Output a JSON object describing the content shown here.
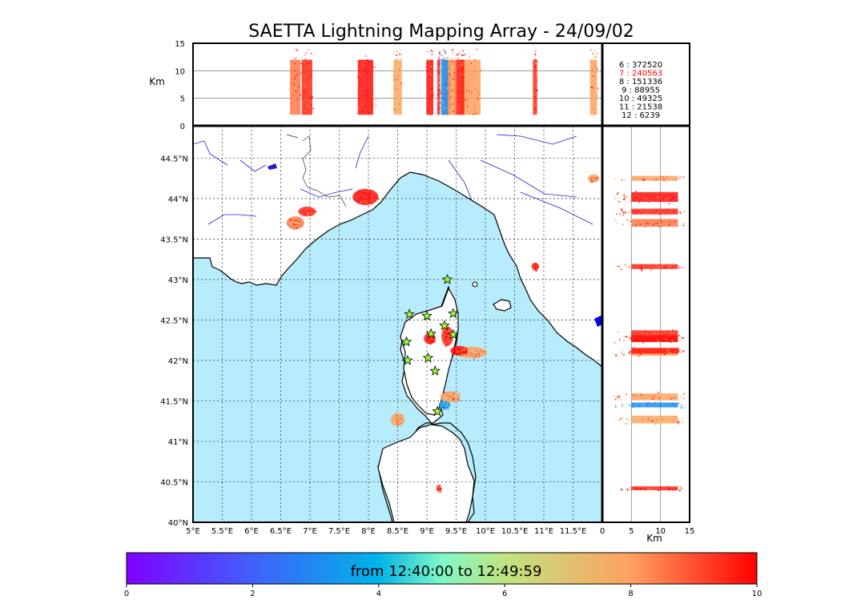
{
  "chart_data": {
    "type": "scatter",
    "title": "SAETTA Lightning Mapping Array - 24/09/02",
    "map": {
      "lon_range": [
        5,
        12
      ],
      "lat_range": [
        40,
        44.9
      ],
      "lon_ticks": [
        "5°E",
        "5.5°E",
        "6°E",
        "6.5°E",
        "7°E",
        "7.5°E",
        "8°E",
        "8.5°E",
        "9°E",
        "9.5°E",
        "10°E",
        "10.5°E",
        "11°E",
        "11.5°E"
      ],
      "lat_ticks": [
        "40°N",
        "40.5°N",
        "41°N",
        "41.5°N",
        "42°N",
        "42.5°N",
        "43°N",
        "43.5°N",
        "44°N",
        "44.5°N"
      ],
      "sea_color": "#b6ecfb",
      "stations": [
        {
          "lon": 9.35,
          "lat": 43.0
        },
        {
          "lon": 8.7,
          "lat": 42.57
        },
        {
          "lon": 9.0,
          "lat": 42.55
        },
        {
          "lon": 9.45,
          "lat": 42.58
        },
        {
          "lon": 9.3,
          "lat": 42.43
        },
        {
          "lon": 9.07,
          "lat": 42.33
        },
        {
          "lon": 8.65,
          "lat": 42.23
        },
        {
          "lon": 9.45,
          "lat": 42.32
        },
        {
          "lon": 8.67,
          "lat": 42.0
        },
        {
          "lon": 9.02,
          "lat": 42.03
        },
        {
          "lon": 9.14,
          "lat": 41.87
        },
        {
          "lon": 9.18,
          "lat": 41.37
        }
      ],
      "clusters": [
        {
          "lon": 6.75,
          "lat": 43.7,
          "rx": 0.15,
          "ry": 0.08,
          "t": 8.5
        },
        {
          "lon": 6.95,
          "lat": 43.84,
          "rx": 0.15,
          "ry": 0.06,
          "t": 9.5
        },
        {
          "lon": 7.95,
          "lat": 44.02,
          "rx": 0.22,
          "ry": 0.1,
          "t": 9.8
        },
        {
          "lon": 9.35,
          "lat": 42.3,
          "rx": 0.1,
          "ry": 0.12,
          "t": 9.5
        },
        {
          "lon": 9.05,
          "lat": 42.27,
          "rx": 0.1,
          "ry": 0.07,
          "t": 9.8
        },
        {
          "lon": 9.75,
          "lat": 42.1,
          "rx": 0.28,
          "ry": 0.07,
          "t": 8.0
        },
        {
          "lon": 9.55,
          "lat": 42.12,
          "rx": 0.15,
          "ry": 0.06,
          "t": 9.7
        },
        {
          "lon": 9.4,
          "lat": 41.55,
          "rx": 0.17,
          "ry": 0.07,
          "t": 8.0
        },
        {
          "lon": 9.3,
          "lat": 41.45,
          "rx": 0.1,
          "ry": 0.05,
          "t": 3.2
        },
        {
          "lon": 8.5,
          "lat": 41.27,
          "rx": 0.12,
          "ry": 0.08,
          "t": 7.8
        },
        {
          "lon": 10.85,
          "lat": 43.16,
          "rx": 0.06,
          "ry": 0.05,
          "t": 9.5
        },
        {
          "lon": 11.85,
          "lat": 44.25,
          "rx": 0.1,
          "ry": 0.05,
          "t": 8.0
        },
        {
          "lon": 9.2,
          "lat": 40.42,
          "rx": 0.04,
          "ry": 0.04,
          "t": 9.5
        }
      ]
    },
    "alt_top": {
      "ylabel": "Km",
      "yticks": [
        "0",
        "5",
        "10",
        "15"
      ],
      "range": [
        0,
        15
      ]
    },
    "alt_right": {
      "xlabel": "Km",
      "xticks": [
        "0",
        "5",
        "10",
        "15"
      ],
      "range": [
        0,
        15
      ]
    },
    "station_counts": [
      {
        "id": "6",
        "count": "372520",
        "color": "#000000"
      },
      {
        "id": "7",
        "count": "240563",
        "color": "#ff0000"
      },
      {
        "id": "8",
        "count": "151336",
        "color": "#000000"
      },
      {
        "id": "9",
        "count": "88955",
        "color": "#000000"
      },
      {
        "id": "10",
        "count": "49325",
        "color": "#000000"
      },
      {
        "id": "11",
        "count": "21538",
        "color": "#000000"
      },
      {
        "id": "12",
        "count": "6239",
        "color": "#000000"
      }
    ],
    "colorbar": {
      "label": "from 12:40:00 to 12:49:59",
      "range": [
        0,
        10
      ],
      "ticks": [
        "0",
        "2",
        "4",
        "6",
        "8",
        "10"
      ]
    }
  }
}
